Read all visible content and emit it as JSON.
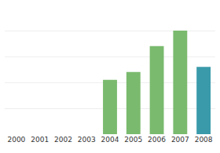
{
  "chart_data": {
    "type": "bar",
    "categories": [
      "2000",
      "2001",
      "2002",
      "2003",
      "2004",
      "2005",
      "2006",
      "2007",
      "2008"
    ],
    "values": [
      0,
      0,
      0,
      0,
      42,
      48,
      68,
      80,
      52
    ],
    "colors": [
      "#7aba6e",
      "#7aba6e",
      "#7aba6e",
      "#7aba6e",
      "#7aba6e",
      "#7aba6e",
      "#7aba6e",
      "#7aba6e",
      "#3a9aaa"
    ],
    "ylim": [
      0,
      100
    ],
    "yticks": [
      0,
      20,
      40,
      60,
      80,
      100
    ],
    "grid": true,
    "tick_labels": "x"
  }
}
